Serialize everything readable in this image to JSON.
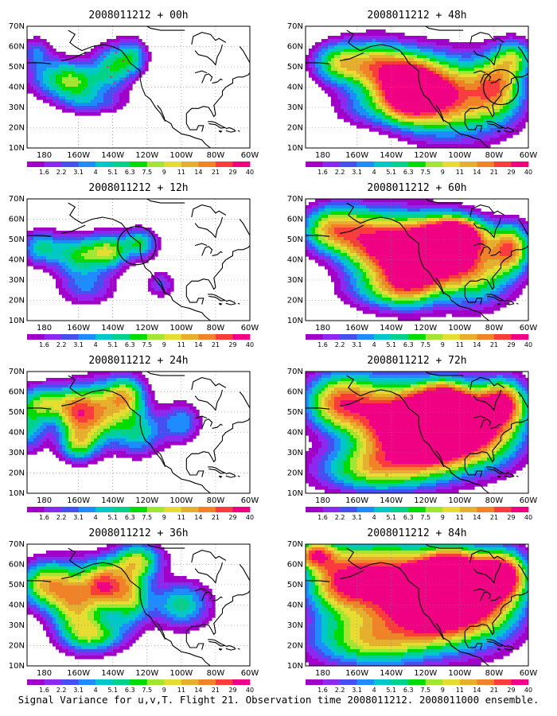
{
  "caption": "Signal Variance for u,v,T. Flight 21. Observation time 2008011212. 2008011000 ensemble.",
  "chart_data": [
    {
      "type": "heatmap",
      "title": "2008011212 + 00h"
    },
    {
      "type": "heatmap",
      "title": "2008011212 + 48h"
    },
    {
      "type": "heatmap",
      "title": "2008011212 + 12h"
    },
    {
      "type": "heatmap",
      "title": "2008011212 + 60h"
    },
    {
      "type": "heatmap",
      "title": "2008011212 + 24h"
    },
    {
      "type": "heatmap",
      "title": "2008011212 + 72h"
    },
    {
      "type": "heatmap",
      "title": "2008011212 + 36h"
    },
    {
      "type": "heatmap",
      "title": "2008011212 + 84h"
    }
  ],
  "axes": {
    "lon_ticks": [
      "180",
      "160W",
      "140W",
      "120W",
      "100W",
      "80W",
      "60W"
    ],
    "lat_ticks": [
      "70N",
      "60N",
      "50N",
      "40N",
      "30N",
      "20N",
      "10N"
    ],
    "lon_range": [
      -190,
      -60
    ],
    "lat_range": [
      10,
      70
    ],
    "grid": true
  },
  "colorbar": {
    "labels": [
      "1.6",
      "2.2",
      "3.1",
      "4",
      "5.1",
      "6.3",
      "7.5",
      "9",
      "11",
      "14",
      "21",
      "29",
      "40"
    ],
    "colors": [
      "#a000c8",
      "#8c28f0",
      "#4650f0",
      "#1e8cff",
      "#00c8c8",
      "#00d28c",
      "#00dc00",
      "#a0e632",
      "#e6dc32",
      "#e6af2d",
      "#f08228",
      "#fa3c3c",
      "#f00082"
    ]
  }
}
